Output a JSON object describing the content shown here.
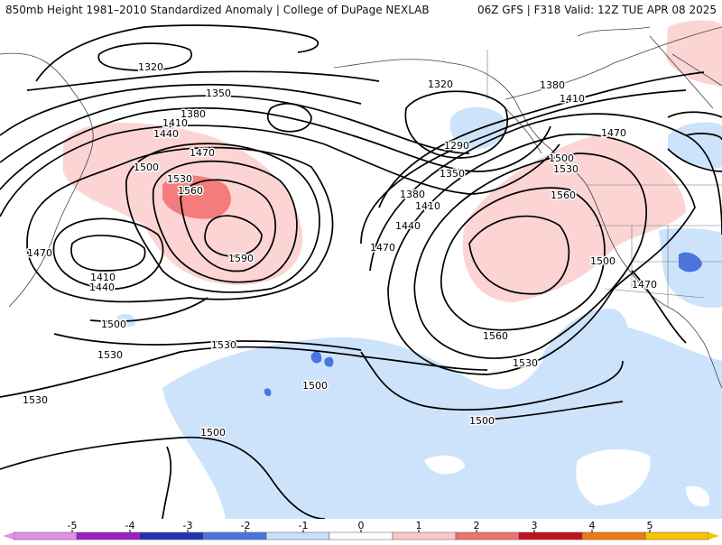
{
  "header": {
    "left_title": "850mb Height 1981–2010 Standardized Anomaly | College of DuPage NEXLAB",
    "right_title": "06Z GFS | F318 Valid: 12Z TUE APR 08 2025"
  },
  "contour_labels": [
    {
      "id": "l1320a",
      "text": "1320"
    },
    {
      "id": "l1320b",
      "text": "1320"
    },
    {
      "id": "l1350a",
      "text": "1350"
    },
    {
      "id": "l1380a",
      "text": "1380"
    },
    {
      "id": "l1380b",
      "text": "1380"
    },
    {
      "id": "l1410a",
      "text": "1410"
    },
    {
      "id": "l1410b",
      "text": "1410"
    },
    {
      "id": "l1410c",
      "text": "1410"
    },
    {
      "id": "l1410d",
      "text": "1410"
    },
    {
      "id": "l1440a",
      "text": "1440"
    },
    {
      "id": "l1440b",
      "text": "1440"
    },
    {
      "id": "l1440c",
      "text": "1440"
    },
    {
      "id": "l1470a",
      "text": "1470"
    },
    {
      "id": "l1470b",
      "text": "1470"
    },
    {
      "id": "l1470c",
      "text": "1470"
    },
    {
      "id": "l1470d",
      "text": "1470"
    },
    {
      "id": "l1470e",
      "text": "1470"
    },
    {
      "id": "l1500a",
      "text": "1500"
    },
    {
      "id": "l1500b",
      "text": "1500"
    },
    {
      "id": "l1500c",
      "text": "1500"
    },
    {
      "id": "l1500d",
      "text": "1500"
    },
    {
      "id": "l1500e",
      "text": "1500"
    },
    {
      "id": "l1500f",
      "text": "1500"
    },
    {
      "id": "l1500g",
      "text": "1500"
    },
    {
      "id": "l1530a",
      "text": "1530"
    },
    {
      "id": "l1530b",
      "text": "1530"
    },
    {
      "id": "l1530c",
      "text": "1530"
    },
    {
      "id": "l1530d",
      "text": "1530"
    },
    {
      "id": "l1530e",
      "text": "1530"
    },
    {
      "id": "l1560a",
      "text": "1560"
    },
    {
      "id": "l1560b",
      "text": "1560"
    },
    {
      "id": "l1560c",
      "text": "1560"
    },
    {
      "id": "l1590a",
      "text": "1590"
    },
    {
      "id": "l1290a",
      "text": "1290"
    },
    {
      "id": "l1350b",
      "text": "1350"
    },
    {
      "id": "l1380c",
      "text": "1380"
    }
  ],
  "colorbar": {
    "ticks": [
      "-5",
      "-4",
      "-3",
      "-2",
      "-1",
      "0",
      "1",
      "2",
      "3",
      "4",
      "5"
    ],
    "colors": [
      "#e08fe6",
      "#9b1ec9",
      "#2233b8",
      "#4a74e0",
      "#c6e0fb",
      "#ffffff",
      "#fcc6c6",
      "#f07070",
      "#c4101e",
      "#f07a12",
      "#f6c400"
    ]
  },
  "anomaly_colors": {
    "light_pos": "#fcd4d4",
    "mid_pos": "#f47c7c",
    "light_neg": "#cde3fb",
    "mid_neg": "#4a74e0"
  }
}
